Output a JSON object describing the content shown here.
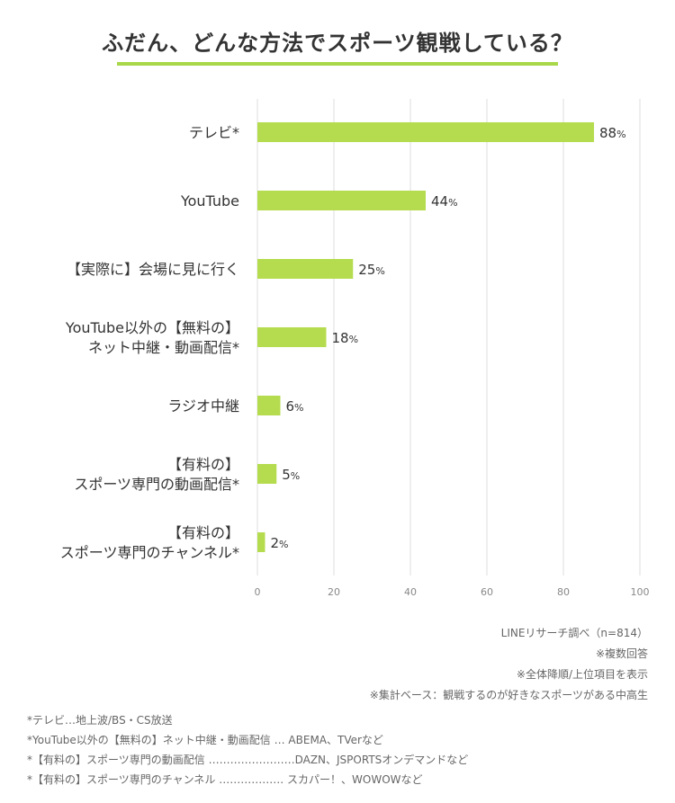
{
  "title": "ふだん、どんな方法でスポーツ観戦している？",
  "chart_data": {
    "type": "bar",
    "orientation": "horizontal",
    "categories": [
      [
        "テレビ*"
      ],
      [
        "YouTube"
      ],
      [
        "【実際に】会場に見に行く"
      ],
      [
        "YouTube以外の【無料の】",
        "ネット中継・動画配信*"
      ],
      [
        "ラジオ中継"
      ],
      [
        "【有料の】",
        "スポーツ専門の動画配信*"
      ],
      [
        "【有料の】",
        "スポーツ専門のチャンネル*"
      ]
    ],
    "values": [
      88,
      44,
      25,
      18,
      6,
      5,
      2
    ],
    "unit": "%",
    "xlim": [
      0,
      100
    ],
    "xticks": [
      0,
      20,
      40,
      60,
      80,
      100
    ],
    "grid": true,
    "bar_color": "#b5dc4f"
  },
  "notes": [
    "LINEリサーチ調べ（n=814）",
    "※複数回答",
    "※全体降順/上位項目を表示",
    "※集計ベース：観戦するのが好きなスポーツがある中高生"
  ],
  "footnotes": [
    "*テレビ…地上波/BS・CS放送",
    "*YouTube以外の【無料の】ネット中継・動画配信 … ABEMA、TVerなど",
    "*【有料の】スポーツ専門の動画配信 ……………………DAZN、JSPORTSオンデマンドなど",
    "*【有料の】スポーツ専門のチャンネル ……………… スカパー！、WOWOWなど"
  ]
}
